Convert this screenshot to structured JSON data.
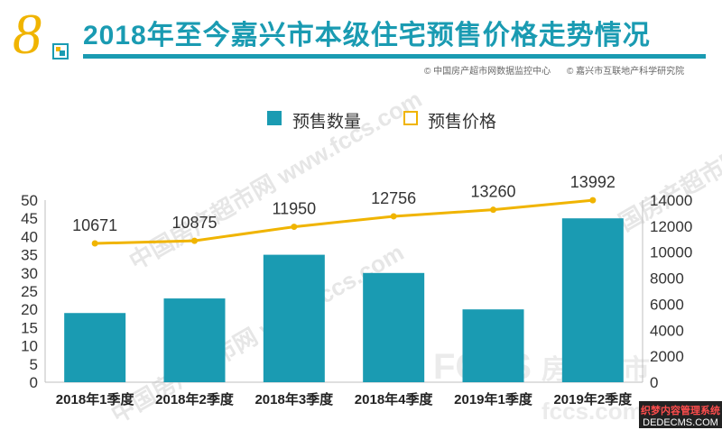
{
  "header": {
    "number": "8",
    "title": "2018年至今嘉兴市本级住宅预售价格走势情况",
    "source_left": "© 中国房产超市网数据监控中心",
    "source_right": "© 嘉兴市互联地产科学研究院"
  },
  "watermarks": {
    "site_cn": "中国房产超市网",
    "site_url": "www.fccs.com",
    "brand": "FCCS",
    "brand_cn": "房产超市",
    "brand_url": "fccs.com"
  },
  "corner_badge": {
    "line1": "织梦内容管理系统",
    "line2": "DEDECMS.COM"
  },
  "colors": {
    "bar": "#1a9bb2",
    "line": "#f0b400",
    "title": "#1a9bb2",
    "number": "#f0b400"
  },
  "chart_data": {
    "type": "bar",
    "categories": [
      "2018年1季度",
      "2018年2季度",
      "2018年3季度",
      "2018年4季度",
      "2019年1季度",
      "2019年2季度"
    ],
    "series": [
      {
        "name": "预售数量",
        "type": "bar",
        "axis": "left",
        "values": [
          19,
          23,
          35,
          30,
          20,
          45
        ]
      },
      {
        "name": "预售价格",
        "type": "line",
        "axis": "right",
        "values": [
          10671,
          10875,
          11950,
          12756,
          13260,
          13992
        ]
      }
    ],
    "data_labels": [
      "10671",
      "10875",
      "11950",
      "12756",
      "13260",
      "13992"
    ],
    "y_left": {
      "lim": [
        0,
        50
      ],
      "ticks": [
        0,
        5,
        10,
        15,
        20,
        25,
        30,
        35,
        40,
        45,
        50
      ]
    },
    "y_right": {
      "lim": [
        0,
        14000
      ],
      "ticks": [
        0,
        2000,
        4000,
        6000,
        8000,
        10000,
        12000,
        14000
      ]
    },
    "legend": {
      "position": "top-center",
      "entries": [
        "预售数量",
        "预售价格"
      ]
    },
    "title": "",
    "xlabel": "",
    "ylabel": "",
    "grid": false
  }
}
